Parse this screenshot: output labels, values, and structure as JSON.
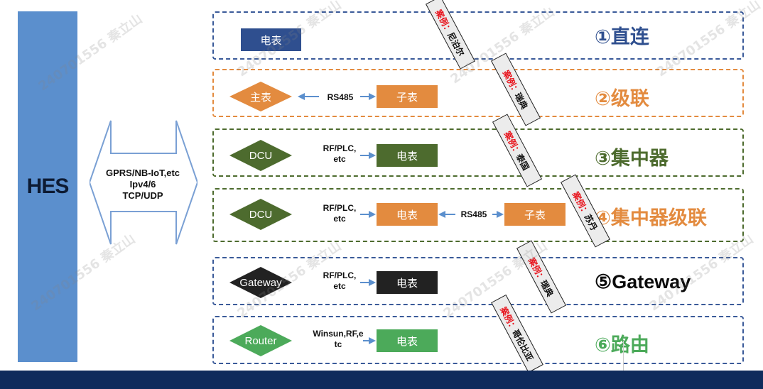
{
  "hes": {
    "label": "HES"
  },
  "protocols": {
    "line1": "GPRS/NB-IoT,etc",
    "line2": "Ipv4/6",
    "line3": "TCP/UDP"
  },
  "rows": [
    {
      "title": "①直连",
      "color": "#2f4f8f",
      "meter": "电表",
      "case": {
        "prefix": "案例：",
        "country": "尼泊尔"
      }
    },
    {
      "title": "②级联",
      "color": "#e38b3f",
      "master": "主表",
      "link": "RS485",
      "sub": "子表",
      "case": {
        "prefix": "案例：",
        "country": "瑞典"
      }
    },
    {
      "title": "③集中器",
      "color": "#4d6b2e",
      "dcu": "DCU",
      "link_line1": "RF/PLC,",
      "link_line2": "etc",
      "meter": "电表",
      "case": {
        "prefix": "案例：",
        "country": "泰国"
      }
    },
    {
      "title": "④集中器级联",
      "color": "#e38b3f",
      "border_color": "#4d6b2e",
      "dcu": "DCU",
      "link_line1": "RF/PLC,",
      "link_line2": "etc",
      "meter": "电表",
      "link2": "RS485",
      "sub": "子表",
      "case": {
        "prefix": "案例：",
        "country": "苏丹"
      }
    },
    {
      "title": "⑤Gateway",
      "color": "#0a0a0a",
      "border_color": "#3a5a99",
      "gateway": "Gateway",
      "link_line1": "RF/PLC,",
      "link_line2": "etc",
      "meter": "电表",
      "case": {
        "prefix": "案例：",
        "country": "瑞典"
      }
    },
    {
      "title": "⑥路由",
      "color": "#4caa5a",
      "border_color": "#3a5a99",
      "router": "Router",
      "link_line1": "Winsun,RF,e",
      "link_line2": "tc",
      "meter": "电表",
      "case": {
        "prefix": "案例：",
        "country": "哥伦比亚"
      }
    }
  ],
  "colors": {
    "hes_bar": "#5b8fcd",
    "arrow_blue": "#5b8fcd",
    "orange": "#e38b3f",
    "dark_green": "#4d6b2e",
    "dark_blue": "#2f4f8f",
    "green": "#4caa5a",
    "black": "#222222",
    "footer": "#0f2b5c",
    "case_red": "#e8111a"
  },
  "watermark": {
    "id": "240701556",
    "name": "秦立山"
  }
}
